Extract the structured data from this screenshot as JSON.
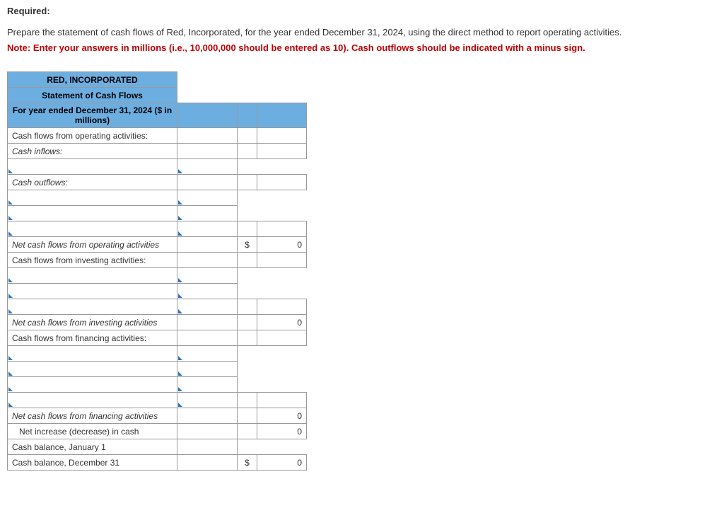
{
  "text": {
    "required": "Required:",
    "instruction": "Prepare the statement of cash flows of Red, Incorporated, for the year ended December 31, 2024, using the direct method to report operating activities.",
    "note": "Note: Enter your answers in millions (i.e., 10,000,000 should be entered as 10). Cash outflows should be indicated with a minus sign."
  },
  "table": {
    "header1": "RED, INCORPORATED",
    "header2": "Statement of Cash Flows",
    "header3": "For year ended December 31, 2024 ($ in millions)",
    "rows": {
      "op_header": "Cash flows from operating activities:",
      "cash_inflows": "Cash inflows:",
      "cash_outflows": "Cash outflows:",
      "net_op": "Net cash flows from operating activities",
      "inv_header": "Cash flows from investing activities:",
      "net_inv": "Net cash flows from investing activities",
      "fin_header": "Cash flows from financing activities:",
      "net_fin": "Net cash flows from financing activities",
      "net_change": "Net increase (decrease) in cash",
      "bal_jan": "Cash balance, January 1",
      "bal_dec": "Cash balance, December 31"
    },
    "currency": "$",
    "values": {
      "net_op": "0",
      "net_inv": "0",
      "net_fin": "0",
      "net_change": "0",
      "bal_dec": "0"
    }
  },
  "colors": {
    "header_bg": "#6daee1",
    "note_color": "#c00000",
    "border": "#999999",
    "tri": "#2e75b6"
  }
}
